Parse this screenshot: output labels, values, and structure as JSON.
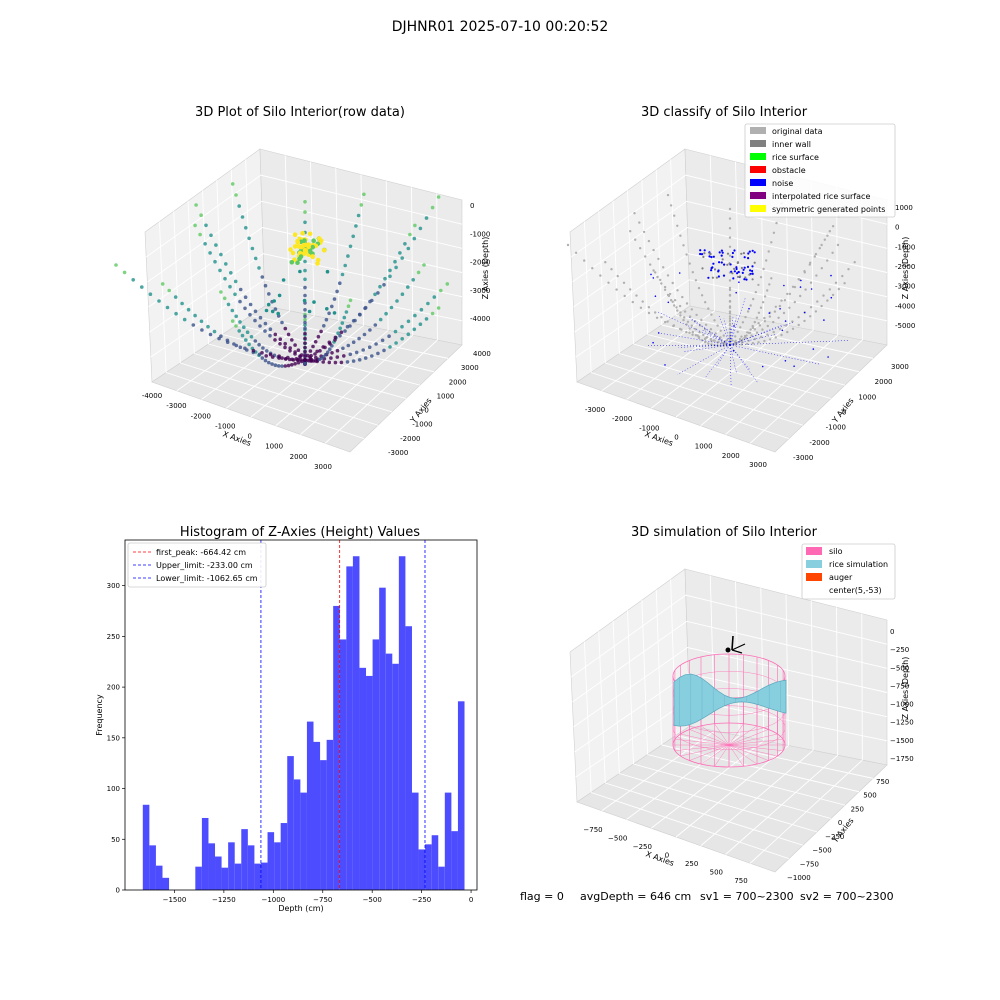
{
  "figure_title": "DJHNR01 2025-07-10 00:20:52",
  "footer": {
    "flag": "flag = 0",
    "avg_depth": "avgDepth = 646 cm",
    "sv1": "sv1 = 700~2300",
    "sv2": "sv2 = 700~2300"
  },
  "chart_data": [
    {
      "type": "scatter",
      "projection": "3d",
      "title": "3D Plot of Silo Interior(row data)",
      "xlabel": "X Axies",
      "ylabel": "Y Axies",
      "zlabel": "Z Axies (Depth)",
      "x_ticks": [
        "-4000",
        "-3000",
        "-2000",
        "-1000",
        "0",
        "1000",
        "2000",
        "3000"
      ],
      "y_ticks": [
        "-3000",
        "-2000",
        "-1000",
        "0",
        "1000",
        "2000",
        "3000",
        "4000"
      ],
      "z_ticks": [
        "0",
        "-1000",
        "-2000",
        "-3000",
        "-4000"
      ],
      "xlim": [
        -4000,
        3000
      ],
      "ylim": [
        -3000,
        4000
      ],
      "zlim": [
        -4500,
        0
      ],
      "colormap": "viridis",
      "colormap_colors": [
        "#440154",
        "#3b528b",
        "#21918c",
        "#5ec962",
        "#fde725"
      ],
      "grid": true
    },
    {
      "type": "scatter",
      "projection": "3d",
      "title": "3D classify of Silo Interior",
      "xlabel": "X Axies",
      "ylabel": "Y Axies",
      "zlabel": "Z Axies (Depth)",
      "x_ticks": [
        "-3000",
        "-2000",
        "-1000",
        "0",
        "1000",
        "2000",
        "3000"
      ],
      "y_ticks": [
        "-3000",
        "-2000",
        "-1000",
        "0",
        "1000",
        "2000",
        "3000"
      ],
      "z_ticks": [
        "1000",
        "0",
        "-1000",
        "-2000",
        "-3000",
        "-4000",
        "-5000"
      ],
      "legend_position": "top-right",
      "legend": [
        {
          "label": "original data",
          "color": "#b0b0b0"
        },
        {
          "label": "inner wall",
          "color": "#808080"
        },
        {
          "label": "rice surface",
          "color": "#00ff00"
        },
        {
          "label": "obstacle",
          "color": "#ff0000"
        },
        {
          "label": "noise",
          "color": "#0000ff"
        },
        {
          "label": "interpolated rice surface",
          "color": "#800080"
        },
        {
          "label": "symmetric generated points",
          "color": "#ffff00"
        }
      ],
      "grid": true
    },
    {
      "type": "bar",
      "subtype": "histogram",
      "title": "Histogram of Z-Axies (Height) Values",
      "xlabel": "Depth (cm)",
      "ylabel": "Frequency",
      "xlim": [
        -1750,
        30
      ],
      "ylim": [
        0,
        345
      ],
      "x_ticks": [
        -1500,
        -1250,
        -1000,
        -750,
        -500,
        -250,
        0
      ],
      "y_ticks": [
        0,
        50,
        100,
        150,
        200,
        250,
        300
      ],
      "bar_color": "#4d4dff",
      "bin_start": -1660,
      "bin_width": 33.2,
      "values": [
        84,
        44,
        24,
        12,
        0,
        0,
        0,
        0,
        23,
        71,
        46,
        33,
        22,
        47,
        26,
        60,
        44,
        26,
        27,
        57,
        47,
        66,
        132,
        109,
        96,
        166,
        146,
        128,
        148,
        280,
        247,
        319,
        329,
        219,
        211,
        247,
        298,
        233,
        223,
        329,
        260,
        96,
        40,
        45,
        54,
        23,
        96,
        58,
        186
      ],
      "vlines": [
        {
          "label": "first_peak: -664.42 cm",
          "x": -664.42,
          "color": "#ff0000"
        },
        {
          "label": "Upper_limit: -233.00 cm",
          "x": -233.0,
          "color": "#0000ff"
        },
        {
          "label": "Lower_limit: -1062.65 cm",
          "x": -1062.65,
          "color": "#0000ff"
        }
      ],
      "legend_position": "top-left",
      "grid": false
    },
    {
      "type": "surface",
      "projection": "3d",
      "title": "3D simulation of Silo Interior",
      "xlabel": "X Axies",
      "ylabel": "Y Axies",
      "zlabel": "Z Axies (Depth)",
      "x_ticks": [
        "−750",
        "−500",
        "−250",
        "0",
        "250",
        "500",
        "750"
      ],
      "y_ticks": [
        "−1000",
        "−750",
        "−500",
        "−250",
        "0",
        "250",
        "500",
        "750"
      ],
      "z_ticks": [
        "0",
        "−250",
        "−500",
        "−750",
        "−1000",
        "−1250",
        "−1500",
        "−1750"
      ],
      "legend_position": "top-right",
      "legend": [
        {
          "label": "silo",
          "color": "#ff69b4"
        },
        {
          "label": "rice simulation",
          "color": "#87cedf"
        },
        {
          "label": "auger",
          "color": "#ff4500"
        },
        {
          "label": "center(5,-53)",
          "color": "none"
        }
      ],
      "grid": true
    }
  ]
}
